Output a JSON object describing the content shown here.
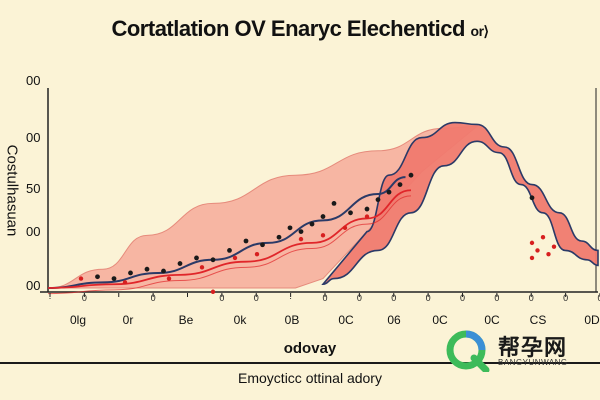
{
  "chart_data": {
    "type": "area",
    "title": "Cortatlation OV Enaryc Elechenticd",
    "title_suffix": "or⟩",
    "xlabel": "odovay",
    "ylabel": "Costulhasuan",
    "caption": "Emoycticc ottinal adory",
    "y_ticks": [
      "00",
      "00",
      "50",
      "00",
      "00"
    ],
    "x_ticks_top": [
      "·",
      "0",
      "",
      "0",
      "",
      "0",
      "0",
      "·",
      "0",
      "0",
      "0",
      "0",
      "0",
      "0",
      "0",
      "0",
      "0"
    ],
    "x_ticks_bottom": [
      "0lg",
      "0r",
      "Be",
      "0k",
      "0B",
      "0C",
      "06",
      "0C",
      "0C",
      "CS",
      "0D"
    ],
    "xlim": [
      0,
      100
    ],
    "ylim": [
      0,
      100
    ],
    "series": [
      {
        "name": "pink-band",
        "color": "#f7b6a3",
        "upper": [
          [
            0,
            0
          ],
          [
            10,
            10
          ],
          [
            18,
            28
          ],
          [
            30,
            45
          ],
          [
            45,
            60
          ],
          [
            60,
            73
          ],
          [
            72,
            85
          ],
          [
            78,
            86
          ]
        ],
        "lower": [
          [
            78,
            86
          ],
          [
            68,
            62
          ],
          [
            58,
            30
          ],
          [
            50,
            5
          ],
          [
            45,
            0
          ]
        ]
      },
      {
        "name": "red-peak",
        "color": "#f07a6f",
        "points": [
          [
            58,
            30
          ],
          [
            62,
            60
          ],
          [
            68,
            80
          ],
          [
            74,
            88
          ],
          [
            78,
            87
          ],
          [
            83,
            75
          ],
          [
            88,
            55
          ],
          [
            93,
            40
          ],
          [
            97,
            25
          ],
          [
            100,
            20
          ],
          [
            100,
            12
          ],
          [
            98,
            15
          ],
          [
            94,
            20
          ],
          [
            90,
            40
          ],
          [
            86,
            55
          ],
          [
            82,
            72
          ],
          [
            78,
            78
          ],
          [
            72,
            65
          ],
          [
            66,
            40
          ],
          [
            60,
            20
          ],
          [
            52,
            5
          ],
          [
            50,
            2
          ]
        ]
      },
      {
        "name": "trend",
        "color": "#2b3a67",
        "points": [
          [
            0,
            0
          ],
          [
            10,
            3
          ],
          [
            20,
            8
          ],
          [
            30,
            15
          ],
          [
            40,
            24
          ],
          [
            50,
            36
          ],
          [
            60,
            50
          ],
          [
            65,
            59
          ]
        ]
      },
      {
        "name": "red-trend",
        "color": "#e0262a",
        "points": [
          [
            0,
            0
          ],
          [
            12,
            2
          ],
          [
            24,
            7
          ],
          [
            36,
            14
          ],
          [
            48,
            24
          ],
          [
            58,
            37
          ],
          [
            66,
            52
          ]
        ]
      },
      {
        "name": "black-points",
        "color": "#1a1a1a",
        "points": [
          [
            9,
            6
          ],
          [
            12,
            5
          ],
          [
            15,
            8
          ],
          [
            18,
            10
          ],
          [
            21,
            9
          ],
          [
            24,
            13
          ],
          [
            27,
            16
          ],
          [
            30,
            15
          ],
          [
            33,
            20
          ],
          [
            36,
            25
          ],
          [
            39,
            23
          ],
          [
            42,
            27
          ],
          [
            44,
            32
          ],
          [
            46,
            30
          ],
          [
            48,
            34
          ],
          [
            50,
            38
          ],
          [
            52,
            45
          ],
          [
            55,
            40
          ],
          [
            58,
            42
          ],
          [
            60,
            47
          ],
          [
            62,
            51
          ],
          [
            64,
            55
          ],
          [
            66,
            60
          ],
          [
            88,
            48
          ]
        ]
      },
      {
        "name": "red-points",
        "color": "#d71f1f",
        "points": [
          [
            6,
            5
          ],
          [
            14,
            3
          ],
          [
            22,
            5
          ],
          [
            28,
            11
          ],
          [
            34,
            16
          ],
          [
            38,
            18
          ],
          [
            46,
            26
          ],
          [
            50,
            28
          ],
          [
            54,
            32
          ],
          [
            58,
            38
          ],
          [
            30,
            -2
          ],
          [
            88,
            24
          ],
          [
            89,
            20
          ],
          [
            90,
            27
          ],
          [
            91,
            18
          ],
          [
            92,
            22
          ],
          [
            88,
            16
          ]
        ]
      }
    ]
  },
  "watermark": {
    "name": "帮孕网",
    "sub": "BANGYUNWANG",
    "colors": {
      "green": "#3dbb5a",
      "blue": "#3b8fd6",
      "dark": "#1a1a1a"
    }
  }
}
